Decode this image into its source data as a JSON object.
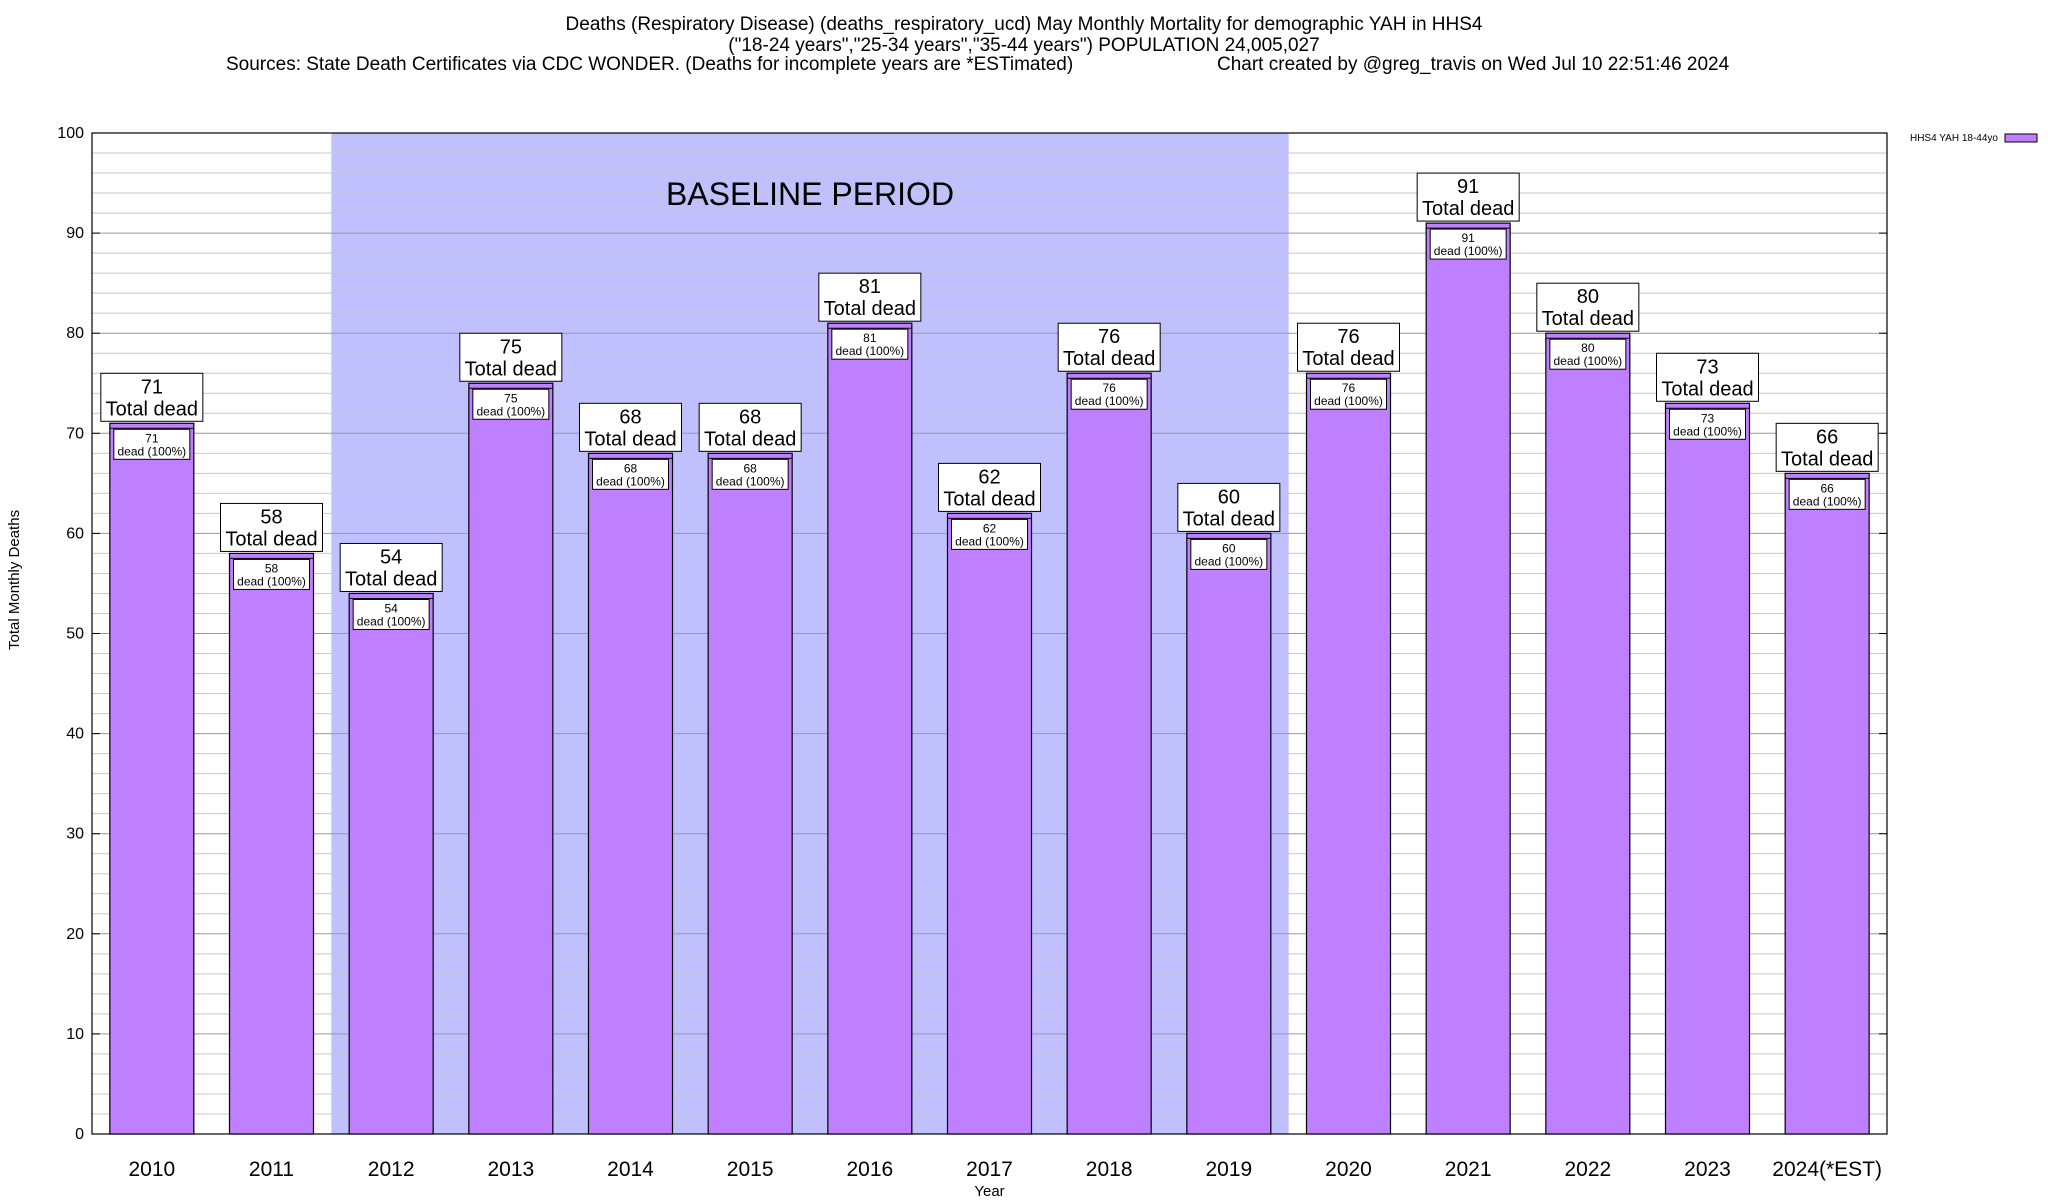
{
  "title": {
    "line1": "Deaths (Respiratory Disease) (deaths_respiratory_ucd) May Monthly Mortality for demographic YAH in HHS4",
    "line2": "(\"18-24 years\",\"25-34 years\",\"35-44 years\") POPULATION 24,005,027",
    "sources": "Sources: State Death Certificates via CDC WONDER. (Deaths for incomplete years are *ESTimated)",
    "credit": "Chart created by @greg_travis on Wed Jul 10 22:51:46 2024"
  },
  "chart_data": {
    "type": "bar",
    "categories": [
      "2010",
      "2011",
      "2012",
      "2013",
      "2014",
      "2015",
      "2016",
      "2017",
      "2018",
      "2019",
      "2020",
      "2021",
      "2022",
      "2023",
      "2024(*EST)"
    ],
    "series": [
      {
        "name": "HHS4 YAH 18-44yo",
        "values": [
          71,
          58,
          54,
          75,
          68,
          68,
          81,
          62,
          76,
          60,
          76,
          91,
          80,
          73,
          66
        ],
        "color": "#bf80ff"
      }
    ],
    "xlabel": "Year",
    "ylabel": "Total Monthly Deaths",
    "ylim": [
      0,
      100
    ],
    "yticks": [
      0,
      10,
      20,
      30,
      40,
      50,
      60,
      70,
      80,
      90,
      100
    ],
    "grid": true,
    "legend_position": "top-right",
    "total_suffix": "Total dead",
    "inner_label_suffix": "dead (100%)",
    "baseline": {
      "label": "BASELINE PERIOD",
      "start": "2012",
      "end": "2019",
      "color": "#c0c0ff"
    }
  }
}
